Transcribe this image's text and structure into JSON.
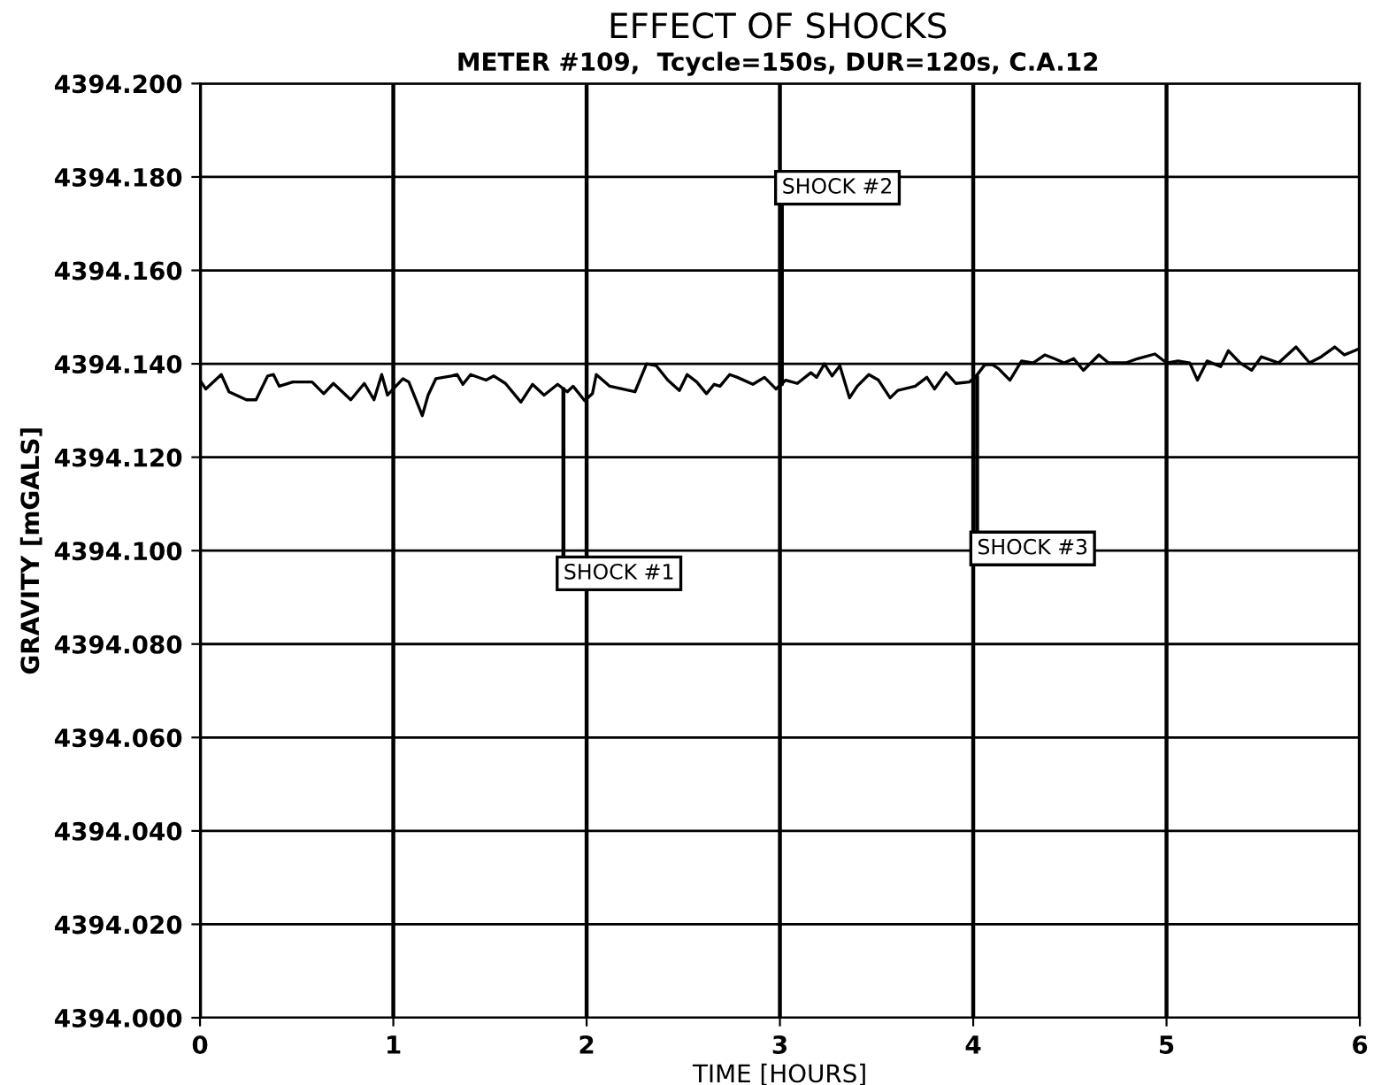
{
  "chart_data": {
    "type": "line",
    "title": "EFFECT OF SHOCKS",
    "subtitle": "METER #109,  Tcycle=150s, DUR=120s, C.A.12",
    "xlabel": "TIME [HOURS]",
    "ylabel": "GRAVITY [mGALS]",
    "x": [
      0.0,
      0.03,
      0.11,
      0.15,
      0.24,
      0.29,
      0.35,
      0.38,
      0.41,
      0.48,
      0.58,
      0.64,
      0.69,
      0.78,
      0.85,
      0.9,
      0.94,
      0.97,
      1.05,
      1.08,
      1.15,
      1.18,
      1.22,
      1.3,
      1.33,
      1.36,
      1.4,
      1.48,
      1.52,
      1.58,
      1.66,
      1.72,
      1.78,
      1.85,
      1.9,
      1.93,
      1.99,
      2.03,
      2.05,
      2.12,
      2.25,
      2.31,
      2.36,
      2.42,
      2.48,
      2.52,
      2.57,
      2.62,
      2.66,
      2.69,
      2.74,
      2.78,
      2.86,
      2.92,
      2.98,
      3.03,
      3.09,
      3.16,
      3.19,
      3.23,
      3.27,
      3.31,
      3.36,
      3.4,
      3.46,
      3.51,
      3.57,
      3.61,
      3.7,
      3.76,
      3.8,
      3.86,
      3.91,
      3.98,
      4.01,
      4.06,
      4.1,
      4.13,
      4.19,
      4.25,
      4.31,
      4.37,
      4.42,
      4.47,
      4.52,
      4.57,
      4.65,
      4.7,
      4.79,
      4.85,
      4.94,
      5.0,
      5.06,
      5.12,
      5.16,
      5.21,
      5.28,
      5.32,
      5.38,
      5.44,
      5.49,
      5.58,
      5.67,
      5.74,
      5.8,
      5.87,
      5.92,
      5.99
    ],
    "series": [
      {
        "color": "#000000",
        "values": [
          4394.1365,
          4394.1346,
          4394.1377,
          4394.134,
          4394.1323,
          4394.1323,
          4394.1374,
          4394.1377,
          4394.1352,
          4394.1361,
          4394.1361,
          4394.1336,
          4394.1358,
          4394.1323,
          4394.1358,
          4394.1323,
          4394.1377,
          4394.1333,
          4394.1368,
          4394.1361,
          4394.1289,
          4394.1333,
          4394.1368,
          4394.1374,
          4394.1377,
          4394.1356,
          4394.1377,
          4394.1365,
          4394.1374,
          4394.1358,
          4394.1318,
          4394.1356,
          4394.1333,
          4394.1356,
          4394.134,
          4394.1352,
          4394.1321,
          4394.1336,
          4394.1377,
          4394.1352,
          4394.134,
          4394.14,
          4394.1396,
          4394.1365,
          4394.1343,
          4394.1377,
          4394.1361,
          4394.1336,
          4394.1356,
          4394.1352,
          4394.1377,
          4394.1371,
          4394.1356,
          4394.1371,
          4394.1346,
          4394.1365,
          4394.1358,
          4394.1381,
          4394.1371,
          4394.14,
          4394.1374,
          4394.1396,
          4394.1327,
          4394.1352,
          4394.1377,
          4394.1365,
          4394.1327,
          4394.1343,
          4394.1352,
          4394.1371,
          4394.1346,
          4394.1381,
          4394.1358,
          4394.1361,
          4394.1371,
          4394.1398,
          4394.1398,
          4394.139,
          4394.1365,
          4394.1406,
          4394.1402,
          4394.1419,
          4394.1411,
          4394.1402,
          4394.1411,
          4394.1386,
          4394.1419,
          4394.1402,
          4394.1402,
          4394.1411,
          4394.1421,
          4394.1402,
          4394.1406,
          4394.1402,
          4394.1365,
          4394.1406,
          4394.1394,
          4394.1428,
          4394.1402,
          4394.1386,
          4394.1415,
          4394.1402,
          4394.1436,
          4394.1402,
          4394.1415,
          4394.1436,
          4394.1419,
          4394.1431
        ]
      }
    ],
    "xlim": [
      0,
      6
    ],
    "xticks": [
      0,
      1,
      2,
      3,
      4,
      5,
      6
    ],
    "ylim": [
      4394.0,
      4394.2
    ],
    "yticks": [
      {
        "value": 4394.0,
        "label": "4394.000"
      },
      {
        "value": 4394.02,
        "label": "4394.020"
      },
      {
        "value": 4394.04,
        "label": "4394.040"
      },
      {
        "value": 4394.06,
        "label": "4394.060"
      },
      {
        "value": 4394.08,
        "label": "4394.080"
      },
      {
        "value": 4394.1,
        "label": "4394.100"
      },
      {
        "value": 4394.12,
        "label": "4394.120"
      },
      {
        "value": 4394.14,
        "label": "4394.140"
      },
      {
        "value": 4394.16,
        "label": "4394.160"
      },
      {
        "value": 4394.18,
        "label": "4394.180"
      },
      {
        "value": 4394.2,
        "label": "4394.200"
      }
    ],
    "grid": true,
    "marker": "none",
    "line_style": "solid",
    "annotations": [
      {
        "text": "SHOCK #1",
        "x": 1.88,
        "y": 4394.1346
      },
      {
        "text": "SHOCK #2",
        "x": 3.01,
        "y": 4394.1356
      },
      {
        "text": "SHOCK #3",
        "x": 4.02,
        "y": 4394.1373
      }
    ]
  }
}
